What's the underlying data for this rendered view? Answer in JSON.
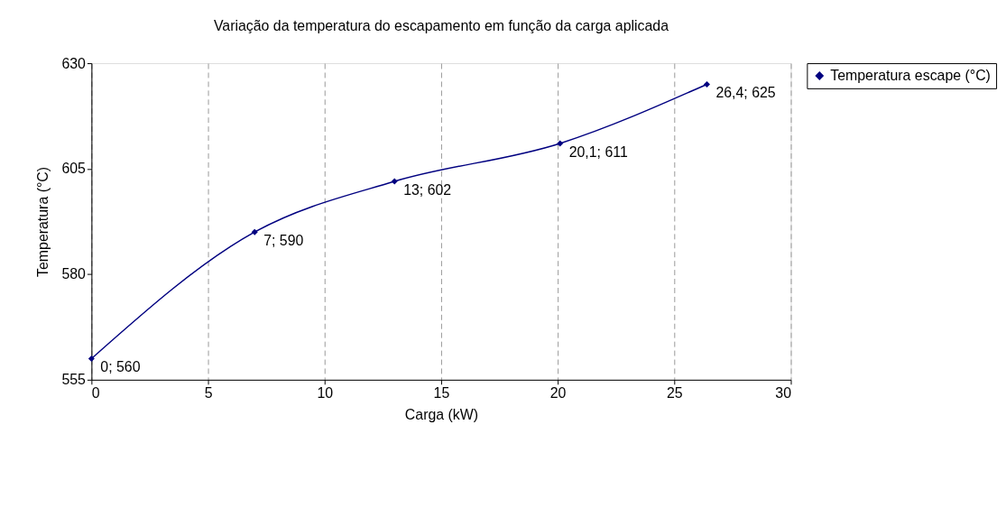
{
  "chart_data": {
    "type": "line",
    "title": "Variação da  temperatura do escapamento em função da carga aplicada",
    "xlabel": "Carga (kW)",
    "ylabel": "Temperatura (°C)",
    "x": [
      0,
      7,
      13,
      20.1,
      26.4
    ],
    "series": [
      {
        "name": "Temperatura escape (°C)",
        "color": "#000080",
        "values": [
          560,
          590,
          602,
          611,
          625
        ],
        "value_labels": [
          "0; 560",
          "7; 590",
          "13; 602",
          "20,1; 611",
          "26,4; 625"
        ]
      }
    ],
    "xlim": [
      0,
      30
    ],
    "xticks": [
      0,
      5,
      10,
      15,
      20,
      25,
      30
    ],
    "ylim": [
      555,
      630
    ],
    "yticks": [
      555,
      580,
      605,
      630
    ],
    "grid": "x",
    "legend": "right",
    "marker": "diamond",
    "line_style": "solid"
  }
}
